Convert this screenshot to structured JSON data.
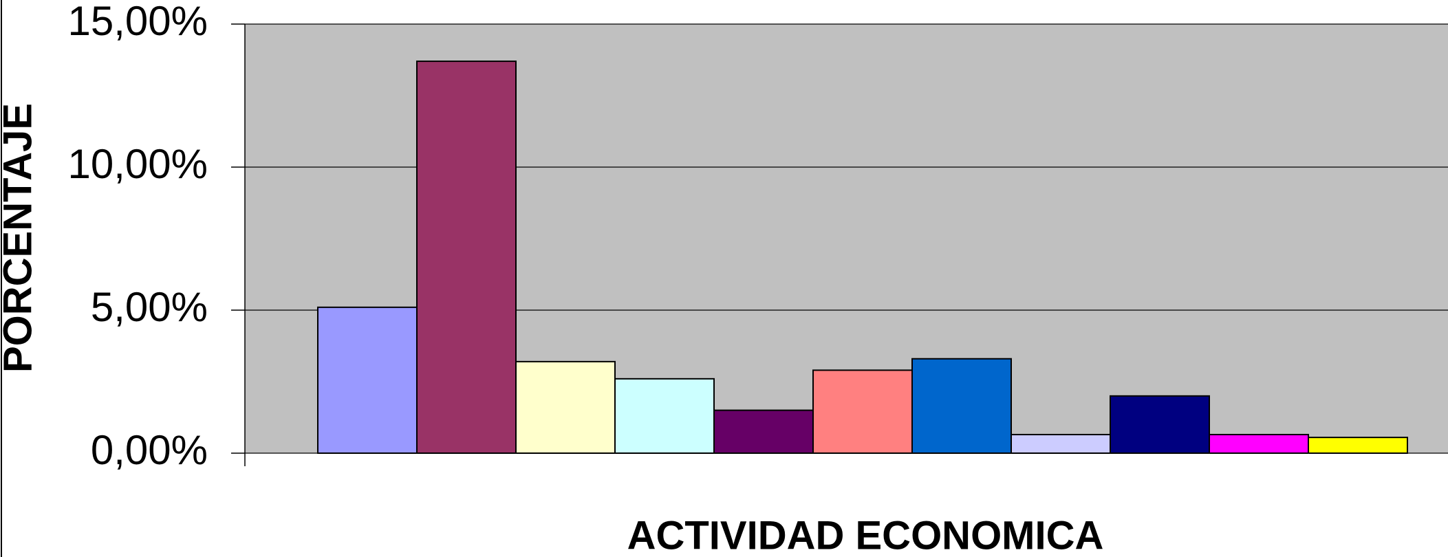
{
  "chart_data": {
    "type": "bar",
    "x_label": "ACTIVIDAD ECONOMICA",
    "y_label": "PORCENTAJE",
    "categories": [
      null,
      null,
      null,
      null,
      null,
      null,
      null,
      null,
      null,
      null,
      null
    ],
    "values": [
      5.1,
      13.7,
      3.2,
      2.6,
      1.5,
      2.9,
      3.3,
      0.65,
      2.0,
      0.65,
      0.55
    ],
    "colors": [
      "#9999ff",
      "#993366",
      "#ffffcc",
      "#ccffff",
      "#660066",
      "#ff8080",
      "#0066cc",
      "#ccccff",
      "#000080",
      "#ff00ff",
      "#ffff00"
    ],
    "ylim": [
      0,
      15
    ],
    "yticks": [
      {
        "value": 0,
        "label": "0,00%"
      },
      {
        "value": 5,
        "label": "5,00%"
      },
      {
        "value": 10,
        "label": "10,00%"
      },
      {
        "value": 15,
        "label": "15,00%"
      }
    ],
    "grid": true,
    "plot_background": "#c0c0c0"
  }
}
